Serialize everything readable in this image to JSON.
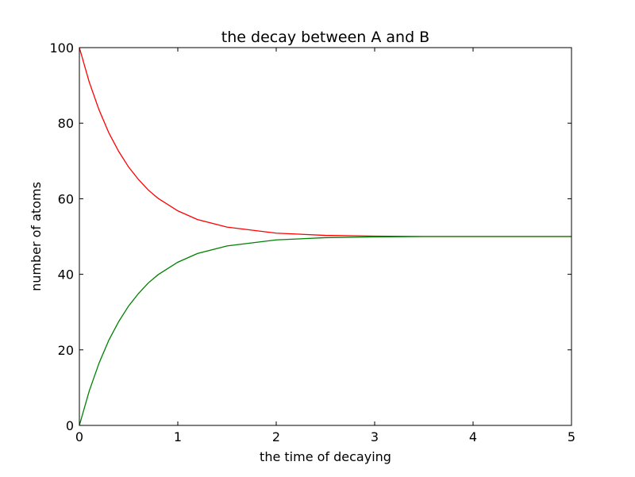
{
  "chart_data": {
    "type": "line",
    "title": "the decay between A and B",
    "xlabel": "the time of decaying",
    "ylabel": "number of atoms",
    "xlim": [
      0,
      5
    ],
    "ylim": [
      0,
      100
    ],
    "xticks": [
      "0",
      "1",
      "2",
      "3",
      "4",
      "5"
    ],
    "yticks": [
      "0",
      "20",
      "40",
      "60",
      "80",
      "100"
    ],
    "grid": false,
    "series": [
      {
        "color": "#ff0000",
        "x": [
          0,
          0.1,
          0.2,
          0.3,
          0.4,
          0.5,
          0.6,
          0.7,
          0.8,
          1.0,
          1.2,
          1.5,
          2.0,
          2.5,
          3.0,
          3.5,
          4.0,
          4.5,
          5.0
        ],
        "y": [
          100,
          90.9,
          83.5,
          77.4,
          72.5,
          68.4,
          65.1,
          62.3,
          60.1,
          56.8,
          54.5,
          52.5,
          50.9,
          50.3,
          50.1,
          50.0,
          50.0,
          50.0,
          50.0
        ]
      },
      {
        "color": "#008000",
        "x": [
          0,
          0.1,
          0.2,
          0.3,
          0.4,
          0.5,
          0.6,
          0.7,
          0.8,
          1.0,
          1.2,
          1.5,
          2.0,
          2.5,
          3.0,
          3.5,
          4.0,
          4.5,
          5.0
        ],
        "y": [
          0,
          9.1,
          16.5,
          22.6,
          27.5,
          31.6,
          34.9,
          37.7,
          39.9,
          43.2,
          45.5,
          47.5,
          49.1,
          49.7,
          49.9,
          50.0,
          50.0,
          50.0,
          50.0
        ]
      }
    ]
  }
}
